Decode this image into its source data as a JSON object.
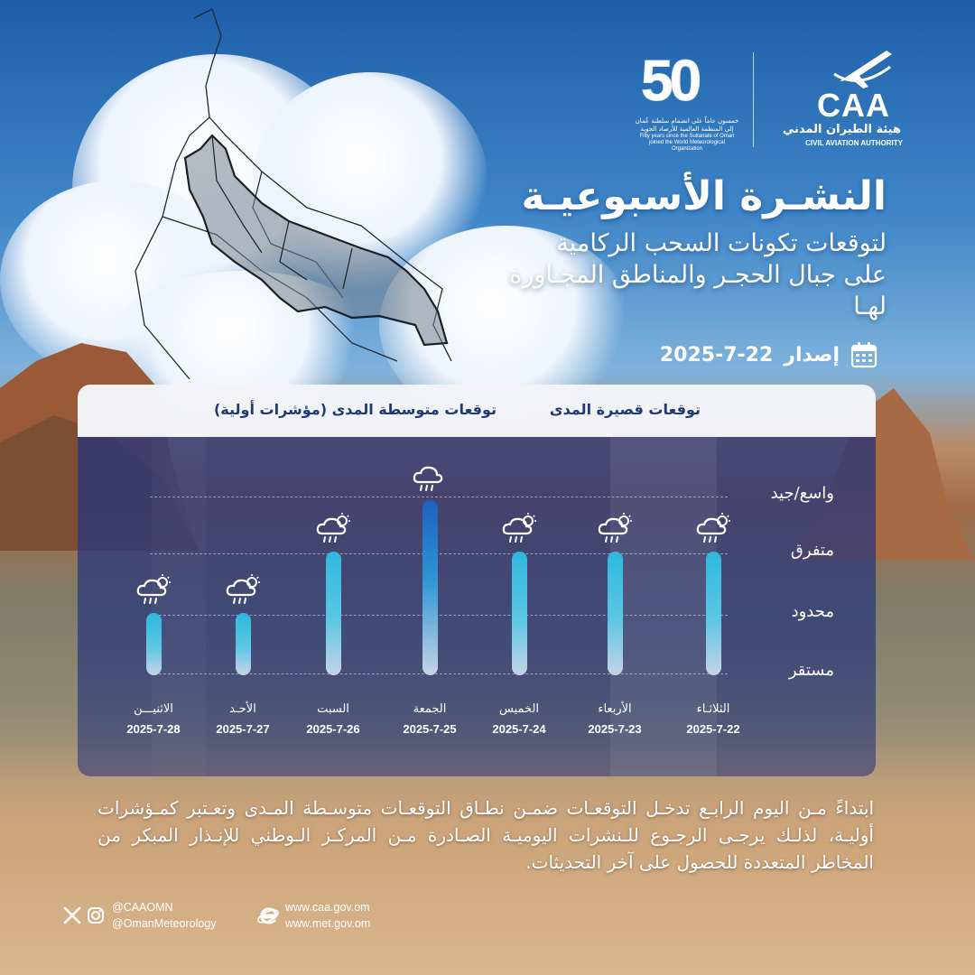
{
  "logos": {
    "caa_text": "CAA",
    "caa_arabic": "هيئة الطيران المدني",
    "caa_english": "CIVIL AVIATION AUTHORITY",
    "fifty_number": "50",
    "fifty_arabic": "خمسون عاماً على انضمام سلطنة عُمان إلى المنظمة العالمية للأرصاد الجوية",
    "fifty_english": "Fifty years since the Sultanate of Oman joined the World Meteorological Organization"
  },
  "header": {
    "title": "النشـرة الأسبوعيـة",
    "subtitle": "لتوقعات تكونات السحب الركامية على جبال الحجـر والمناطق المجـاورة لهـا",
    "issue_label": "إصدار",
    "issue_date": "2025-7-22"
  },
  "panel": {
    "short_range_label": "توقعات قصيرة المدى",
    "medium_range_label": "توقعات متوسطة المدى (مؤشرات أولية)",
    "levels": [
      "واسع/جيد",
      "متفرق",
      "محدود",
      "مستقر"
    ],
    "days": [
      {
        "day": "الثلاثـاء",
        "date": "2025-7-22",
        "level": 3,
        "icon": "cloud-sun-rain-icon"
      },
      {
        "day": "الأربعاء",
        "date": "2025-7-23",
        "level": 3,
        "icon": "cloud-sun-rain-icon"
      },
      {
        "day": "الخميس",
        "date": "2025-7-24",
        "level": 3,
        "icon": "cloud-sun-rain-icon"
      },
      {
        "day": "الجمعة",
        "date": "2025-7-25",
        "level": 4,
        "icon": "cloud-rain-icon"
      },
      {
        "day": "السبت",
        "date": "2025-7-26",
        "level": 3,
        "icon": "cloud-sun-rain-icon"
      },
      {
        "day": "الأحـد",
        "date": "2025-7-27",
        "level": 2,
        "icon": "cloud-sun-rain-icon"
      },
      {
        "day": "الاثنيـــن",
        "date": "2025-7-28",
        "level": 2,
        "icon": "cloud-sun-rain-icon"
      }
    ]
  },
  "footer": {
    "note": "ابتداءً مـن اليوم الرابـع تدخـل التوقعـات ضمـن نطـاق التوقعـات متوسـطة المـدى وتعـتبر كمـؤشرات أوليـة، لذلـك يرجـى الرجـوع للـنشرات اليوميـة الصـادرة مـن المركـز الـوطني للإنـذار المبكر من المخاطر المتعددة للحصول على آخر التحديثات.",
    "social_handle_1": "@CAAOMN",
    "social_handle_2": "@OmanMeteorology",
    "website_1": "www.caa.gov.om",
    "website_2": "www.met.gov.om"
  },
  "colors": {
    "panel_bg": "#26327a",
    "bar_top": "#2fb8de",
    "bar_bottom": "#c7d3e6",
    "header_text": "#1f3a73"
  }
}
